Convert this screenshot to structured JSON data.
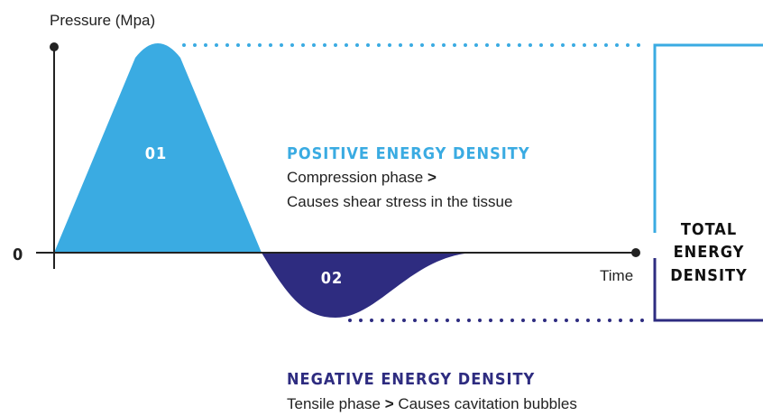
{
  "axes": {
    "y_label": "Pressure (Mpa)",
    "origin": "0",
    "x_label": "Time"
  },
  "lobes": [
    {
      "label": "01"
    },
    {
      "label": "02"
    }
  ],
  "positive": {
    "title": "POSITIVE ENERGY DENSITY",
    "phase": "Compression phase",
    "separator": ">",
    "effect": "Causes shear stress in the tissue"
  },
  "total": {
    "lines": [
      "TOTAL",
      "ENERGY",
      "DENSITY"
    ]
  },
  "negative": {
    "title": "NEGATIVE ENERGY DENSITY",
    "phase": "Tensile phase",
    "separator": ">",
    "effect": "Causes cavitation bubbles"
  }
}
